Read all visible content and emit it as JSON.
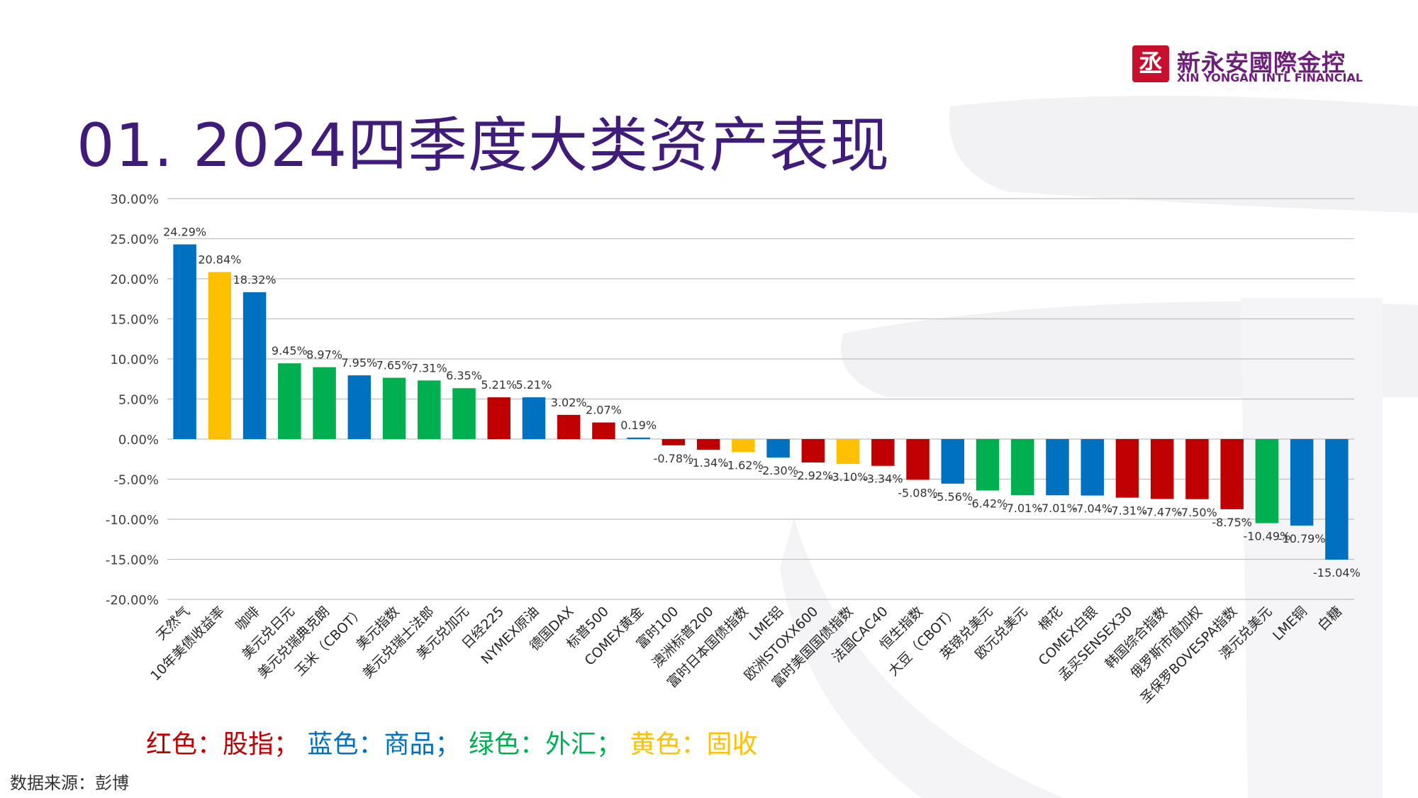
{
  "brand": {
    "logo_mark": "丞",
    "name_cn": "新永安國際金控",
    "name_en": "XIN YONGAN INTL FINANCIAL",
    "color": "#6d1f7a",
    "mark_color": "#c8102e"
  },
  "page_title": "01. 2024四季度大类资产表现",
  "colors": {
    "red": "#c00000",
    "blue": "#0070c0",
    "green": "#00b050",
    "yellow": "#ffc000",
    "title": "#3f1b7a"
  },
  "chart_data": {
    "type": "bar",
    "title": "",
    "xlabel": "",
    "ylabel": "",
    "ylim": [
      -20,
      30
    ],
    "yticks": [
      30,
      25,
      20,
      15,
      10,
      5,
      0,
      -5,
      -10,
      -15,
      -20
    ],
    "ytick_labels": [
      "30.00%",
      "25.00%",
      "20.00%",
      "15.00%",
      "10.00%",
      "5.00%",
      "0.00%",
      "-5.00%",
      "-10.00%",
      "-15.00%",
      "-20.00%"
    ],
    "grid": true,
    "categories": [
      "天然气",
      "10年美债收益率",
      "咖啡",
      "美元兑日元",
      "美元兑瑞典克朗",
      "玉米（CBOT）",
      "美元指数",
      "美元兑瑞士法郎",
      "美元兑加元",
      "日经225",
      "NYMEX原油",
      "德国DAX",
      "标普500",
      "COMEX黄金",
      "富时100",
      "澳洲标普200",
      "富时日本国债指数",
      "LME铝",
      "欧洲STOXX600",
      "富时美国国债指数",
      "法国CAC40",
      "恒生指数",
      "大豆（CBOT）",
      "英镑兑美元",
      "欧元兑美元",
      "棉花",
      "COMEX白银",
      "孟买SENSEX30",
      "韩国综合指数",
      "俄罗斯市值加权",
      "圣保罗BOVESPA指数",
      "澳元兑美元",
      "LME铜",
      "白糖"
    ],
    "values": [
      24.29,
      20.84,
      18.32,
      9.45,
      8.97,
      7.95,
      7.65,
      7.31,
      6.35,
      5.21,
      5.21,
      3.02,
      2.07,
      0.19,
      -0.78,
      -1.34,
      -1.62,
      -2.3,
      -2.92,
      -3.1,
      -3.34,
      -5.08,
      -5.56,
      -6.42,
      -7.01,
      -7.01,
      -7.04,
      -7.31,
      -7.47,
      -7.5,
      -8.75,
      -10.49,
      -10.79,
      -15.04
    ],
    "value_labels": [
      "24.29%",
      "20.84%",
      "18.32%",
      "9.45%",
      "8.97%",
      "7.95%",
      "7.65%",
      "7.31%",
      "6.35%",
      "5.21%",
      "5.21%",
      "3.02%",
      "2.07%",
      "0.19%",
      "-0.78%",
      "-1.34%",
      "-1.62%",
      "-2.30%",
      "-2.92%",
      "-3.10%",
      "-3.34%",
      "-5.08%",
      "-5.56%",
      "-6.42%",
      "-7.01%",
      "-7.01%",
      "-7.04%",
      "-7.31%",
      "-7.47%",
      "-7.50%",
      "-8.75%",
      "-10.49%",
      "-10.79%",
      "-15.04%"
    ],
    "asset_class": [
      "blue",
      "yellow",
      "blue",
      "green",
      "green",
      "blue",
      "green",
      "green",
      "green",
      "red",
      "blue",
      "red",
      "red",
      "blue",
      "red",
      "red",
      "yellow",
      "blue",
      "red",
      "yellow",
      "red",
      "red",
      "blue",
      "green",
      "green",
      "blue",
      "blue",
      "red",
      "red",
      "red",
      "red",
      "green",
      "blue",
      "blue"
    ]
  },
  "legend": {
    "red_label": "红色：股指",
    "blue_label": "蓝色：商品",
    "green_label": "绿色：外汇",
    "yellow_label": "黄色：固收",
    "separator": "；"
  },
  "source": "数据来源：彭博"
}
